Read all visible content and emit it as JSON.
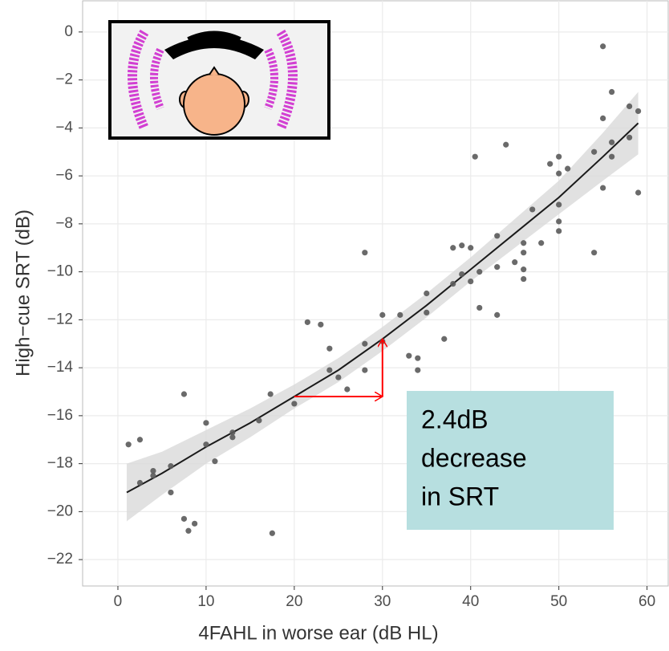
{
  "chart_data": {
    "type": "scatter",
    "x_label": "4FAHL in worse ear (dB HL)",
    "y_label": "High−cue SRT (dB)",
    "xlim": [
      -4,
      62.4
    ],
    "ylim": [
      -23.1,
      1.3
    ],
    "xticks": [
      0,
      10,
      20,
      30,
      40,
      50,
      60
    ],
    "yticks": [
      0,
      {
        "value": -2,
        "label": "−2"
      },
      {
        "value": -4,
        "label": "−4"
      },
      {
        "value": -6,
        "label": "−6"
      },
      {
        "value": -8,
        "label": "−8"
      },
      {
        "value": -10,
        "label": "−10"
      },
      {
        "value": -12,
        "label": "−12"
      },
      {
        "value": -14,
        "label": "−14"
      },
      {
        "value": -16,
        "label": "−16"
      },
      {
        "value": -18,
        "label": "−18"
      },
      {
        "value": -20,
        "label": "−20"
      },
      {
        "value": -22,
        "label": "−22"
      }
    ],
    "grid": true,
    "color": "#5a5a5a",
    "points": {
      "x": [
        1.2,
        2.5,
        2.5,
        4,
        4,
        6,
        6,
        7.5,
        7.5,
        8,
        8.7,
        10,
        10,
        11,
        13,
        13,
        16,
        17.3,
        17.5,
        20,
        21.5,
        23,
        24,
        24,
        25,
        26,
        28,
        28,
        28,
        30,
        30,
        32,
        33,
        34,
        34,
        35,
        35,
        37,
        38,
        38,
        39,
        39,
        40,
        40,
        40.5,
        41,
        41,
        43,
        43,
        43,
        44,
        45,
        46,
        46,
        46,
        46,
        47,
        48,
        49,
        50,
        50,
        50,
        50,
        50,
        51,
        54,
        54,
        55,
        55,
        55,
        56,
        56,
        56,
        58,
        58,
        59,
        59
      ],
      "y": [
        -17.2,
        -17.0,
        -18.8,
        -18.3,
        -18.5,
        -18.1,
        -19.2,
        -15.1,
        -20.3,
        -20.8,
        -20.5,
        -16.3,
        -17.2,
        -17.9,
        -16.7,
        -16.9,
        -16.2,
        -15.1,
        -20.9,
        -15.5,
        -12.1,
        -12.2,
        -13.2,
        -14.1,
        -14.4,
        -14.9,
        -9.2,
        -13.0,
        -14.1,
        -11.8,
        -12.9,
        -11.8,
        -13.5,
        -13.6,
        -14.1,
        -10.9,
        -11.7,
        -12.8,
        -10.5,
        -9.0,
        -8.9,
        -10.1,
        -10.4,
        -9.0,
        -5.2,
        -11.5,
        -10.0,
        -8.5,
        -9.8,
        -11.8,
        -4.7,
        -9.6,
        -8.8,
        -9.2,
        -9.9,
        -10.3,
        -7.4,
        -8.8,
        -5.5,
        -5.2,
        -5.9,
        -7.2,
        -7.9,
        -8.3,
        -5.7,
        -5.0,
        -9.2,
        -0.6,
        -3.6,
        -6.5,
        -2.5,
        -4.6,
        -5.2,
        -3.1,
        -4.4,
        -3.3,
        -6.7
      ]
    },
    "fit": {
      "color": "#1a1a1a",
      "band_color": "#d9d9d9",
      "x": [
        1,
        5,
        10,
        15,
        20,
        25,
        30,
        35,
        40,
        45,
        50,
        55,
        59
      ],
      "y": [
        -19.2,
        -18.4,
        -17.3,
        -16.3,
        -15.2,
        -14.1,
        -12.8,
        -11.4,
        -9.9,
        -8.4,
        -6.9,
        -5.2,
        -3.8
      ],
      "lower": [
        -20.4,
        -19.3,
        -18.0,
        -16.9,
        -15.7,
        -14.6,
        -13.3,
        -11.9,
        -10.4,
        -9.0,
        -7.6,
        -6.2,
        -5.1
      ],
      "upper": [
        -18.0,
        -17.5,
        -16.6,
        -15.7,
        -14.7,
        -13.6,
        -12.3,
        -10.9,
        -9.4,
        -7.8,
        -6.2,
        -4.2,
        -2.5
      ]
    },
    "arrow": {
      "x": [
        20,
        30
      ],
      "y": [
        -15.2,
        -12.8
      ],
      "color": "#ff0000"
    },
    "annotation": [
      "2.4dB",
      "decrease",
      "in SRT"
    ]
  }
}
